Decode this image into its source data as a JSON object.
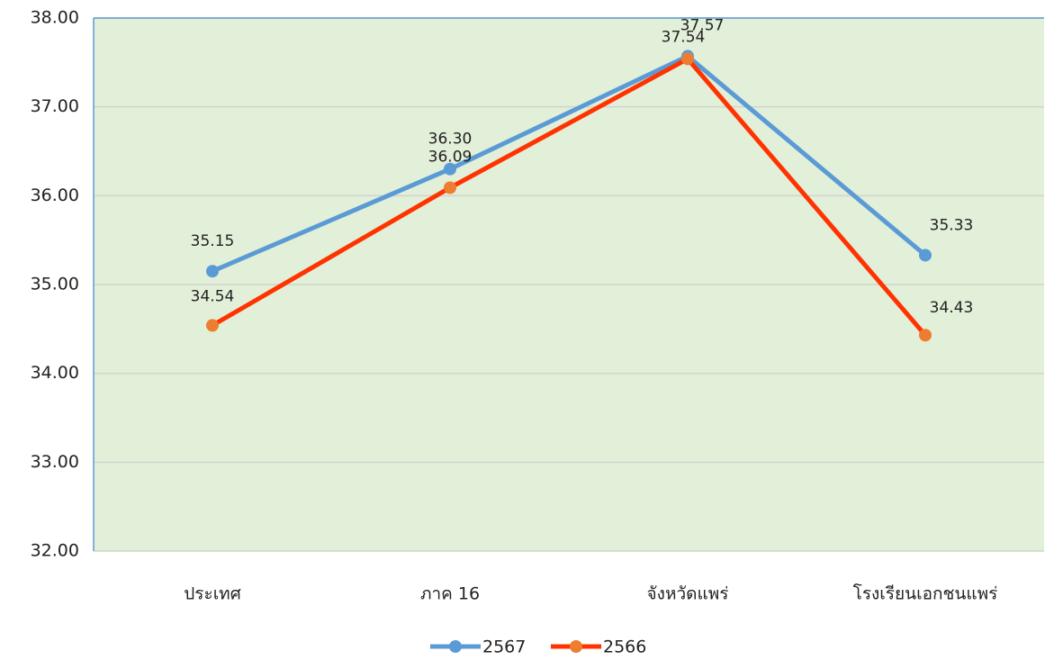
{
  "chart_data": {
    "type": "line",
    "categories": [
      "ประเทศ",
      "ภาค 16",
      "จังหวัดแพร่",
      "โรงเรียนเอกชนแพร่"
    ],
    "series": [
      {
        "name": "2567",
        "color": "#5b9bd5",
        "marker_color": "#5b9bd5",
        "values": [
          35.15,
          36.3,
          37.57,
          35.33
        ],
        "value_labels": [
          "35.15",
          "36.30",
          "37.57",
          "35.33"
        ]
      },
      {
        "name": "2566",
        "color": "#ff3300",
        "marker_color": "#ed7d31",
        "values": [
          34.54,
          36.09,
          37.54,
          34.43
        ]
      }
    ],
    "ylim": [
      32,
      38
    ],
    "yticks": [
      {
        "value": 32,
        "label": "32.00"
      },
      {
        "value": 33,
        "label": "33.00"
      },
      {
        "value": 34,
        "label": "34.00"
      },
      {
        "value": 35,
        "label": "35.00"
      },
      {
        "value": 36,
        "label": "36.00"
      },
      {
        "value": 37,
        "label": "37.00"
      },
      {
        "value": 38,
        "label": "38.00"
      }
    ],
    "grid": true,
    "legend": "bottom",
    "plot_background": "#e2efd9"
  }
}
